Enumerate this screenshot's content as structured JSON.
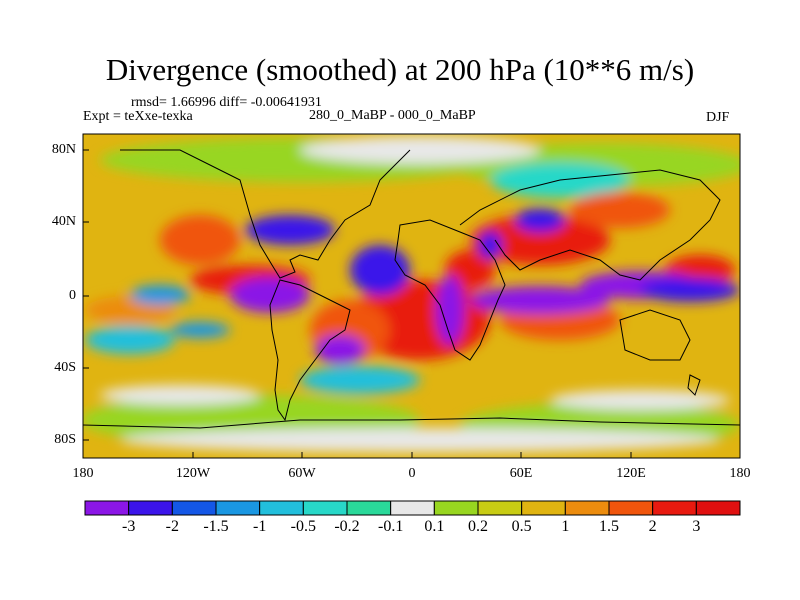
{
  "chart_data": {
    "type": "heatmap",
    "title": "Divergence (smoothed) at 200 hPa (10**6 m/s)",
    "stats_text": "rmsd= 1.66996 diff= -0.00641931",
    "left_label": "Expt = teXxe-texka",
    "center_label": "280_0_MaBP - 000_0_MaBP",
    "right_label": "DJF",
    "x_tick_labels": [
      "180",
      "120W",
      "60W",
      "0",
      "60E",
      "120E",
      "180"
    ],
    "y_tick_labels": [
      "80N",
      "40N",
      "0",
      "40S",
      "80S"
    ],
    "x_range": [
      -180,
      180
    ],
    "y_range": [
      -90,
      90
    ],
    "colorbar": {
      "labels": [
        "-3",
        "-2",
        "-1.5",
        "-1",
        "-0.5",
        "-0.2",
        "-0.1",
        "0.1",
        "0.2",
        "0.5",
        "1",
        "1.5",
        "2",
        "3"
      ],
      "colors": [
        "#8b16e6",
        "#3b14ea",
        "#1457e6",
        "#1a97e2",
        "#22bfdc",
        "#28d8c8",
        "#2ad99a",
        "#e8e8e8",
        "#98d620",
        "#c8cc14",
        "#e0b411",
        "#ec8c0e",
        "#f0550c",
        "#e81a10",
        "#e01010"
      ]
    },
    "regions": [
      {
        "name": "equatorial-pacific-negative",
        "lon": -145,
        "lat": -5,
        "value": -2.5
      },
      {
        "name": "central-america-positive",
        "lon": -100,
        "lat": 15,
        "value": 2.5
      },
      {
        "name": "south-pacific-positive",
        "lon": -150,
        "lat": -25,
        "value": 1.5
      },
      {
        "name": "amazon-negative",
        "lon": -70,
        "lat": -30,
        "value": -3
      },
      {
        "name": "south-atlantic-positive",
        "lon": -20,
        "lat": -15,
        "value": 3
      },
      {
        "name": "africa-negative",
        "lon": 20,
        "lat": 5,
        "value": -2.5
      },
      {
        "name": "arabian-sea-positive",
        "lon": 60,
        "lat": 25,
        "value": 2.5
      },
      {
        "name": "indian-ocean-negative",
        "lon": 70,
        "lat": -5,
        "value": -3
      },
      {
        "name": "maritime-continent-negative",
        "lon": 140,
        "lat": 0,
        "value": -3
      },
      {
        "name": "east-asia-positive",
        "lon": 110,
        "lat": 40,
        "value": 3
      }
    ]
  }
}
